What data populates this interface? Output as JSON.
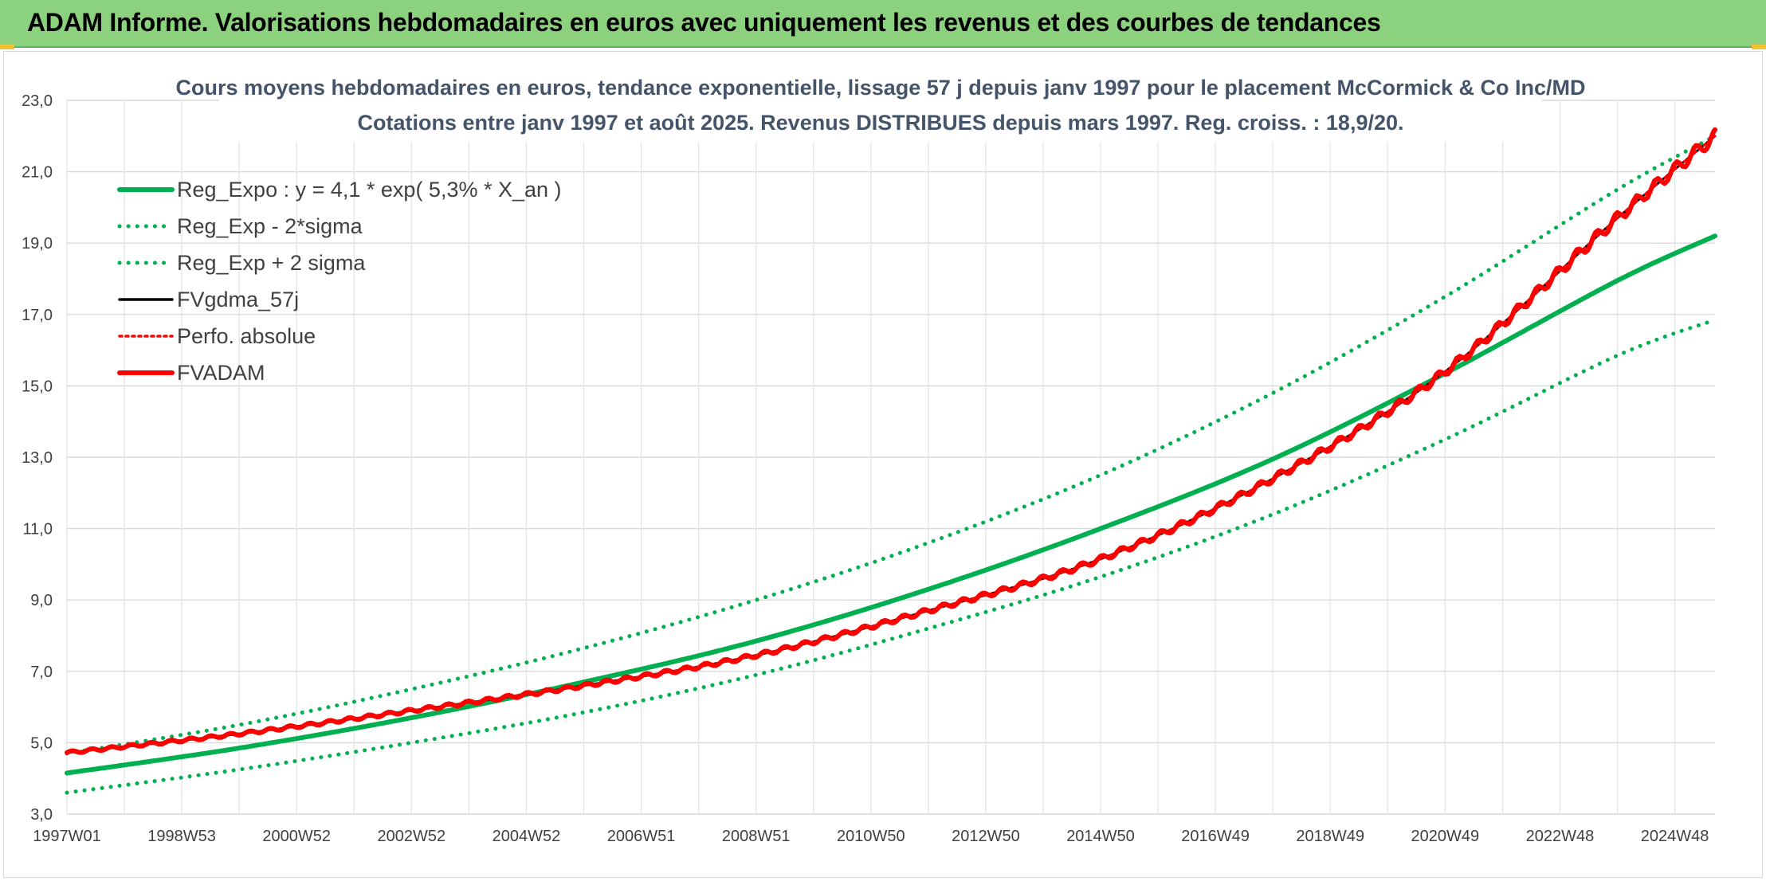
{
  "header": {
    "title": "ADAM Informe. Valorisations hebdomadaires en euros avec uniquement les revenus et des courbes de tendances"
  },
  "chart_data": {
    "type": "line",
    "title": "Cours moyens hebdomadaires en euros, tendance exponentielle, lissage 57 j depuis janv 1997 pour le placement McCormick & Co Inc/MD",
    "subtitle": "Cotations entre janv 1997 et août 2025. Revenus DISTRIBUES depuis mars 1997. Reg. croiss. : 18,9/20.",
    "xlabel": "",
    "ylabel": "",
    "ylim": [
      3.0,
      23.0
    ],
    "y_ticks": [
      "23,0",
      "21,0",
      "19,0",
      "17,0",
      "15,0",
      "13,0",
      "11,0",
      "9,0",
      "7,0",
      "5,0",
      "3,0"
    ],
    "y_tick_values": [
      23,
      21,
      19,
      17,
      15,
      13,
      11,
      9,
      7,
      5,
      3
    ],
    "x_ticks": [
      "1997W01",
      "1998W53",
      "2000W52",
      "2002W52",
      "2004W52",
      "2006W51",
      "2008W51",
      "2010W50",
      "2012W50",
      "2014W50",
      "2016W49",
      "2018W49",
      "2020W49",
      "2022W48",
      "2024W48"
    ],
    "x_tick_years": [
      1997.0,
      1999.0,
      2001.0,
      2003.0,
      2005.0,
      2007.0,
      2009.0,
      2011.0,
      2013.0,
      2015.0,
      2017.0,
      2019.0,
      2021.0,
      2023.0,
      2025.0
    ],
    "xlim_years": [
      1997.0,
      2025.7
    ],
    "grid": true,
    "legend_position": "top-left",
    "series": [
      {
        "name": "Reg_Expo : y = 4,1 * exp( 5,3% *  X_an )",
        "color": "#00b050",
        "style": "solid",
        "x": [
          1997.0,
          2000.0,
          2003.0,
          2006.0,
          2009.0,
          2012.0,
          2015.0,
          2018.0,
          2021.0,
          2024.0,
          2025.7
        ],
        "y": [
          4.15,
          4.85,
          5.7,
          6.7,
          7.85,
          9.3,
          11.0,
          12.95,
          15.35,
          17.95,
          19.2
        ]
      },
      {
        "name": "Reg_Exp - 2*sigma",
        "color": "#00b050",
        "style": "dotted",
        "x": [
          1997.0,
          2000.0,
          2003.0,
          2006.0,
          2009.0,
          2012.0,
          2015.0,
          2018.0,
          2021.0,
          2024.0,
          2025.7
        ],
        "y": [
          3.6,
          4.25,
          5.0,
          5.85,
          6.9,
          8.2,
          9.65,
          11.4,
          13.5,
          15.85,
          16.85
        ]
      },
      {
        "name": "Reg_Exp + 2 sigma",
        "color": "#00b050",
        "style": "dotted",
        "x": [
          1997.0,
          2000.0,
          2003.0,
          2006.0,
          2009.0,
          2012.0,
          2015.0,
          2018.0,
          2021.0,
          2024.0,
          2025.7
        ],
        "y": [
          4.7,
          5.5,
          6.5,
          7.65,
          9.0,
          10.6,
          12.5,
          14.8,
          17.5,
          20.5,
          22.0
        ]
      },
      {
        "name": "FVgdma_57j",
        "color": "#000000",
        "style": "solid",
        "x": [
          1997.0,
          2000.0,
          2003.0,
          2006.0,
          2009.0,
          2012.0,
          2015.0,
          2018.0,
          2021.0,
          2024.0,
          2025.7
        ],
        "y": [
          4.72,
          5.25,
          5.9,
          6.6,
          7.45,
          8.7,
          10.15,
          12.4,
          15.4,
          19.7,
          22.0
        ]
      },
      {
        "name": "Perfo. absolue",
        "color": "#ff0000",
        "style": "dotted",
        "x": [
          1997.0,
          2000.0,
          2003.0,
          2006.0,
          2009.0,
          2012.0,
          2015.0,
          2018.0,
          2021.0,
          2024.0,
          2025.7
        ],
        "y": [
          4.72,
          5.25,
          5.9,
          6.6,
          7.45,
          8.7,
          10.15,
          12.4,
          15.4,
          19.7,
          22.0
        ]
      },
      {
        "name": "FVADAM",
        "color": "#ff0000",
        "style": "solid",
        "x": [
          1997.0,
          2000.0,
          2003.0,
          2006.0,
          2009.0,
          2012.0,
          2015.0,
          2018.0,
          2021.0,
          2024.0,
          2025.7
        ],
        "y": [
          4.72,
          5.25,
          5.9,
          6.6,
          7.45,
          8.7,
          10.15,
          12.4,
          15.4,
          19.7,
          22.0
        ]
      }
    ]
  }
}
